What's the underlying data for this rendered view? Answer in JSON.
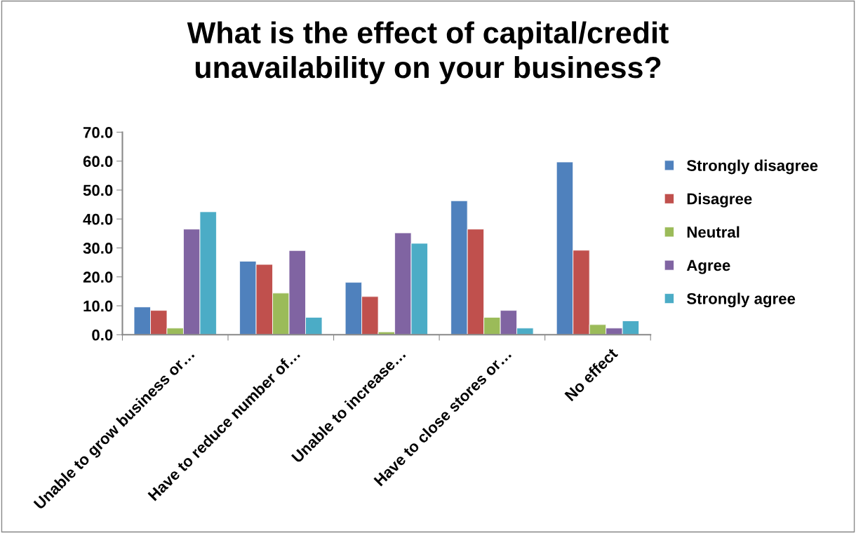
{
  "chart_data": {
    "type": "bar",
    "title": "What is the effect of capital/credit\nunavailability on your business?",
    "categories": [
      "Unable to grow business or…",
      "Have to reduce number of…",
      "Unable to increase…",
      "Have to close stores or…",
      "No effect"
    ],
    "series": [
      {
        "name": "Strongly disagree",
        "color": "#4f81bd",
        "values": [
          9.6,
          25.4,
          18.1,
          46.3,
          59.7
        ]
      },
      {
        "name": "Disagree",
        "color": "#c0504d",
        "values": [
          8.4,
          24.3,
          13.2,
          36.5,
          29.2
        ]
      },
      {
        "name": "Neutral",
        "color": "#9bbb59",
        "values": [
          2.3,
          14.4,
          1.0,
          6.0,
          3.5
        ]
      },
      {
        "name": "Agree",
        "color": "#8064a2",
        "values": [
          36.5,
          29.1,
          35.2,
          8.4,
          2.3
        ]
      },
      {
        "name": "Strongly agree",
        "color": "#4bacc6",
        "values": [
          42.5,
          6.0,
          31.6,
          2.3,
          4.8
        ]
      }
    ],
    "ylim": [
      0,
      70
    ],
    "yticks": [
      {
        "value": 0,
        "label": "0.0"
      },
      {
        "value": 10,
        "label": "10.0"
      },
      {
        "value": 20,
        "label": "20.0"
      },
      {
        "value": 30,
        "label": "30.0"
      },
      {
        "value": 40,
        "label": "40.0"
      },
      {
        "value": 50,
        "label": "50.0"
      },
      {
        "value": 60,
        "label": "60.0"
      },
      {
        "value": 70,
        "label": "70.0"
      }
    ],
    "grid": false,
    "legend": "right"
  }
}
